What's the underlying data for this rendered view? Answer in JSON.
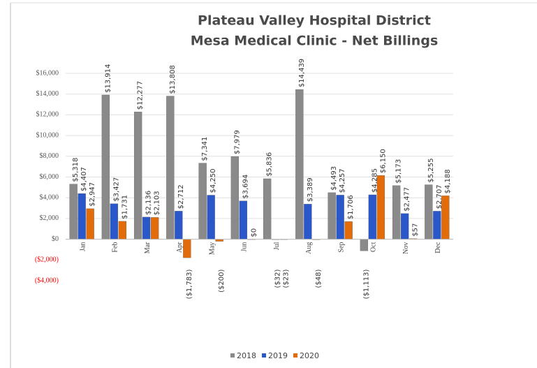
{
  "chart_data": {
    "type": "bar",
    "title": "Plateau Valley Hospital District",
    "subtitle": "Mesa Medical Clinic - Net Billings",
    "categories": [
      "Jan",
      "Feb",
      "Mar",
      "Apr",
      "May",
      "Jun",
      "Jul",
      "Aug",
      "Sep",
      "Oct",
      "Nov",
      "Dec"
    ],
    "series": [
      {
        "name": "2018",
        "color": "#8a8a8a",
        "values": [
          5318,
          13914,
          12277,
          13808,
          7341,
          7979,
          5836,
          14439,
          4493,
          -1113,
          5173,
          5255
        ],
        "value_labels": [
          "$5,318",
          "$13,914",
          "$12,277",
          "$13,808",
          "$7,341",
          "$7,979",
          "$5,836",
          "$14,439",
          "$4,493",
          "($1,113)",
          "$5,173",
          "$5,255"
        ]
      },
      {
        "name": "2019",
        "color": "#2a57c9",
        "values": [
          4407,
          3427,
          2136,
          2712,
          4250,
          3694,
          -32,
          3389,
          4257,
          4285,
          2477,
          2707
        ],
        "value_labels": [
          "$4,407",
          "$3,427",
          "$2,136",
          "$2,712",
          "$4,250",
          "$3,694",
          "($32)",
          "$3,389",
          "$4,257",
          "$4,285",
          "$2,477",
          "$2,707"
        ]
      },
      {
        "name": "2020",
        "color": "#e36c0a",
        "values": [
          2947,
          1731,
          2103,
          -1783,
          -200,
          0,
          -23,
          -48,
          1706,
          6150,
          57,
          4188
        ],
        "value_labels": [
          "$2,947",
          "$1,731",
          "$2,103",
          "($1,783)",
          "($200)",
          "$0",
          "($23)",
          "($48)",
          "$1,706",
          "$6,150",
          "$57",
          "$4,188"
        ]
      }
    ],
    "ylim": [
      -4000,
      16000
    ],
    "yticks": [
      {
        "value": -4000,
        "label": "($4,000)"
      },
      {
        "value": -2000,
        "label": "($2,000)"
      },
      {
        "value": 0,
        "label": "$0"
      },
      {
        "value": 2000,
        "label": "$2,000"
      },
      {
        "value": 4000,
        "label": "$4,000"
      },
      {
        "value": 6000,
        "label": "$6,000"
      },
      {
        "value": 8000,
        "label": "$8,000"
      },
      {
        "value": 10000,
        "label": "$10,000"
      },
      {
        "value": 12000,
        "label": "$12,000"
      },
      {
        "value": 14000,
        "label": "$14,000"
      },
      {
        "value": 16000,
        "label": "$16,000"
      }
    ],
    "grid": true,
    "negative_label_color": "#ff0000",
    "legend": "bottom"
  }
}
